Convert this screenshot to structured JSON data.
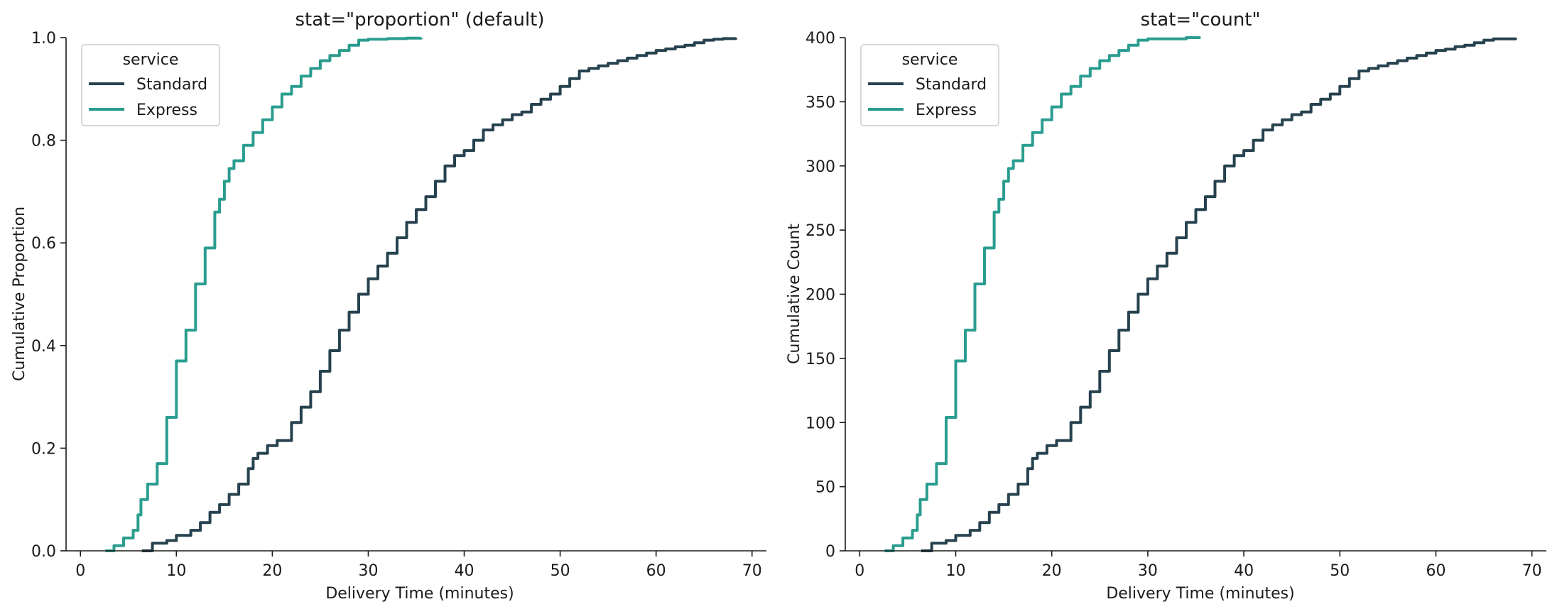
{
  "chart_data": [
    {
      "type": "line",
      "subtype": "ecdf",
      "title": "stat=\"proportion\" (default)",
      "xlabel": "Delivery Time (minutes)",
      "ylabel": "Cumulative Proportion",
      "xlim": [
        -1.5,
        71.5
      ],
      "ylim": [
        0,
        1.0
      ],
      "xticks": [
        0,
        10,
        20,
        30,
        40,
        50,
        60,
        70
      ],
      "xtick_labels": [
        "0",
        "10",
        "20",
        "30",
        "40",
        "50",
        "60",
        "70"
      ],
      "yticks": [
        0,
        0.2,
        0.4,
        0.6,
        0.8,
        1.0
      ],
      "ytick_labels": [
        "0.0",
        "0.2",
        "0.4",
        "0.6",
        "0.8",
        "1.0"
      ],
      "grid": false,
      "legend": {
        "title": "service",
        "position": "top-left"
      },
      "series": [
        {
          "name": "Standard",
          "color": "#27424f",
          "x": [
            6.4,
            7.5,
            9,
            10,
            11.5,
            12.5,
            13.5,
            14.5,
            15.5,
            16.5,
            17.5,
            18,
            18.5,
            19.5,
            20.5,
            22,
            23,
            24,
            25,
            26,
            27,
            28,
            29,
            30,
            31,
            32,
            33,
            34,
            35,
            36,
            37,
            38,
            39,
            40,
            41,
            42,
            43,
            44,
            45,
            46,
            47,
            48,
            49,
            50,
            51,
            52,
            53,
            54,
            55,
            56,
            57,
            58,
            59,
            60,
            61,
            62,
            63,
            64,
            65,
            66,
            67,
            68.3
          ],
          "y": [
            0,
            0.015,
            0.02,
            0.03,
            0.04,
            0.055,
            0.075,
            0.09,
            0.11,
            0.13,
            0.16,
            0.18,
            0.19,
            0.205,
            0.215,
            0.25,
            0.28,
            0.31,
            0.35,
            0.39,
            0.43,
            0.465,
            0.5,
            0.53,
            0.555,
            0.58,
            0.61,
            0.64,
            0.665,
            0.69,
            0.72,
            0.75,
            0.77,
            0.78,
            0.8,
            0.82,
            0.83,
            0.84,
            0.85,
            0.855,
            0.87,
            0.88,
            0.89,
            0.905,
            0.92,
            0.935,
            0.94,
            0.945,
            0.95,
            0.955,
            0.96,
            0.965,
            0.97,
            0.975,
            0.978,
            0.982,
            0.985,
            0.99,
            0.995,
            0.997,
            0.998,
            1.0
          ]
        },
        {
          "name": "Express",
          "color": "#2a9d8f",
          "x": [
            2.6,
            3.5,
            4.5,
            5.5,
            6,
            6.3,
            7,
            8,
            9,
            10,
            11,
            12,
            13,
            14,
            14.5,
            15,
            15.5,
            16,
            17,
            18,
            19,
            20,
            21,
            22,
            23,
            24,
            25,
            26,
            27,
            28,
            29,
            30,
            32,
            34,
            35.5
          ],
          "y": [
            0,
            0.01,
            0.025,
            0.04,
            0.07,
            0.1,
            0.13,
            0.17,
            0.26,
            0.37,
            0.43,
            0.52,
            0.59,
            0.66,
            0.685,
            0.72,
            0.745,
            0.76,
            0.79,
            0.815,
            0.84,
            0.865,
            0.89,
            0.905,
            0.925,
            0.94,
            0.955,
            0.965,
            0.975,
            0.985,
            0.995,
            0.997,
            0.998,
            0.999,
            1.0
          ]
        }
      ]
    },
    {
      "type": "line",
      "subtype": "ecdf",
      "title": "stat=\"count\"",
      "xlabel": "Delivery Time (minutes)",
      "ylabel": "Cumulative Count",
      "xlim": [
        -1.5,
        71.5
      ],
      "ylim": [
        0,
        400
      ],
      "xticks": [
        0,
        10,
        20,
        30,
        40,
        50,
        60,
        70
      ],
      "xtick_labels": [
        "0",
        "10",
        "20",
        "30",
        "40",
        "50",
        "60",
        "70"
      ],
      "yticks": [
        0,
        50,
        100,
        150,
        200,
        250,
        300,
        350,
        400
      ],
      "ytick_labels": [
        "0",
        "50",
        "100",
        "150",
        "200",
        "250",
        "300",
        "350",
        "400"
      ],
      "grid": false,
      "legend": {
        "title": "service",
        "position": "top-left"
      },
      "series": [
        {
          "name": "Standard",
          "color": "#27424f",
          "x": [
            6.4,
            7.5,
            9,
            10,
            11.5,
            12.5,
            13.5,
            14.5,
            15.5,
            16.5,
            17.5,
            18,
            18.5,
            19.5,
            20.5,
            22,
            23,
            24,
            25,
            26,
            27,
            28,
            29,
            30,
            31,
            32,
            33,
            34,
            35,
            36,
            37,
            38,
            39,
            40,
            41,
            42,
            43,
            44,
            45,
            46,
            47,
            48,
            49,
            50,
            51,
            52,
            53,
            54,
            55,
            56,
            57,
            58,
            59,
            60,
            61,
            62,
            63,
            64,
            65,
            66,
            67,
            68.3
          ],
          "y": [
            0,
            6,
            8,
            12,
            16,
            22,
            30,
            36,
            44,
            52,
            64,
            72,
            76,
            82,
            86,
            100,
            112,
            124,
            140,
            156,
            172,
            186,
            200,
            212,
            222,
            232,
            244,
            256,
            266,
            276,
            288,
            300,
            308,
            312,
            320,
            328,
            332,
            336,
            340,
            342,
            348,
            352,
            356,
            362,
            368,
            374,
            376,
            378,
            380,
            382,
            384,
            386,
            388,
            390,
            391,
            393,
            394,
            396,
            398,
            399,
            399,
            400
          ]
        },
        {
          "name": "Express",
          "color": "#2a9d8f",
          "x": [
            2.6,
            3.5,
            4.5,
            5.5,
            6,
            6.3,
            7,
            8,
            9,
            10,
            11,
            12,
            13,
            14,
            14.5,
            15,
            15.5,
            16,
            17,
            18,
            19,
            20,
            21,
            22,
            23,
            24,
            25,
            26,
            27,
            28,
            29,
            30,
            32,
            34,
            35.5
          ],
          "y": [
            0,
            4,
            10,
            16,
            28,
            40,
            52,
            68,
            104,
            148,
            172,
            208,
            236,
            264,
            274,
            288,
            298,
            304,
            316,
            326,
            336,
            346,
            356,
            362,
            370,
            376,
            382,
            386,
            390,
            394,
            398,
            399,
            399,
            400,
            400
          ]
        }
      ]
    }
  ]
}
